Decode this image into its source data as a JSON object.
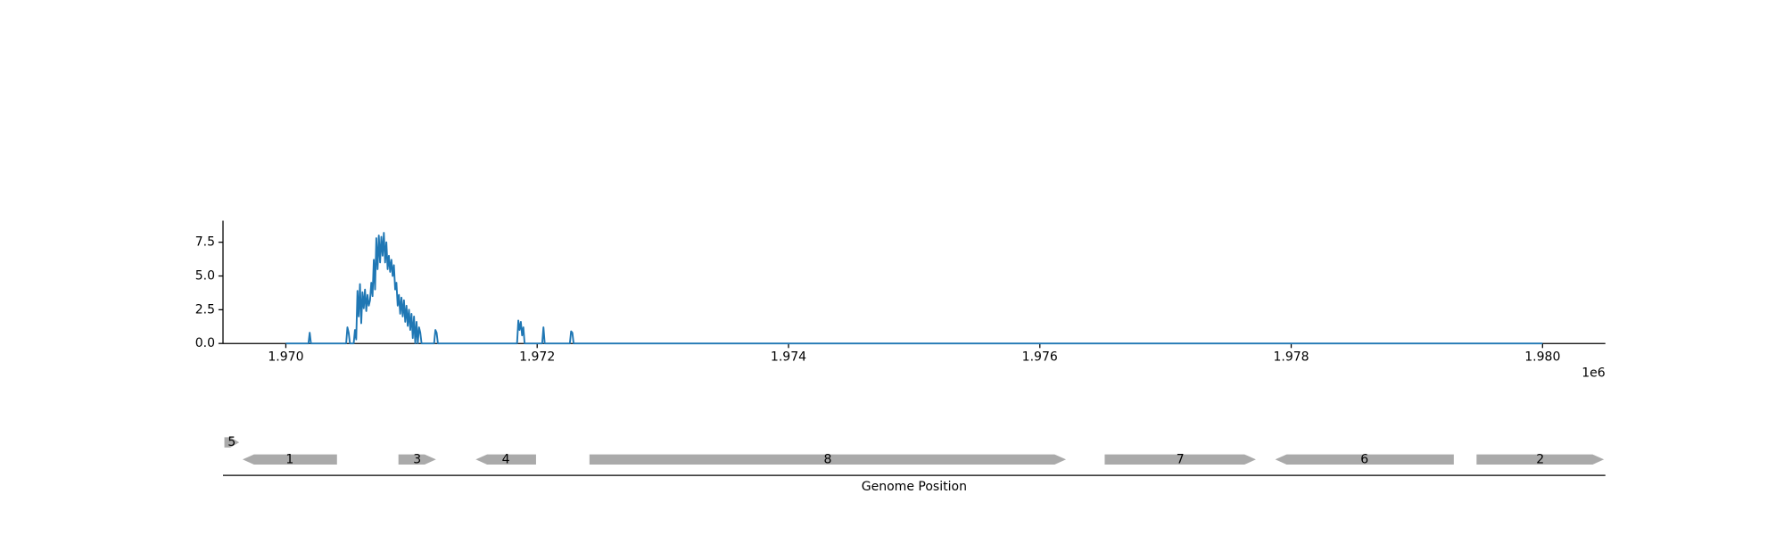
{
  "chart_data": {
    "type": "line",
    "x_label": "Genome Position",
    "x_offset_label": "1e6",
    "xlim": [
      1969500,
      1980500
    ],
    "ylim": [
      0,
      9.1
    ],
    "xticks": [
      {
        "value": 1970000,
        "label": "1.970"
      },
      {
        "value": 1972000,
        "label": "1.972"
      },
      {
        "value": 1974000,
        "label": "1.974"
      },
      {
        "value": 1976000,
        "label": "1.976"
      },
      {
        "value": 1978000,
        "label": "1.978"
      },
      {
        "value": 1980000,
        "label": "1.980"
      }
    ],
    "yticks": [
      {
        "value": 0,
        "label": "0.0"
      },
      2.5,
      {
        "value": 5,
        "label": "5.0"
      },
      7.5
    ],
    "series": [
      {
        "color": "#1f77b4",
        "x": [
          1970000,
          1970180,
          1970190,
          1970200,
          1970480,
          1970490,
          1970500,
          1970510,
          1970540,
          1970550,
          1970560,
          1970570,
          1970580,
          1970590,
          1970600,
          1970610,
          1970620,
          1970630,
          1970640,
          1970650,
          1970660,
          1970670,
          1970680,
          1970690,
          1970700,
          1970710,
          1970720,
          1970730,
          1970740,
          1970750,
          1970760,
          1970770,
          1970780,
          1970790,
          1970800,
          1970810,
          1970820,
          1970830,
          1970840,
          1970850,
          1970860,
          1970870,
          1970880,
          1970890,
          1970900,
          1970910,
          1970920,
          1970930,
          1970940,
          1970950,
          1970960,
          1970970,
          1970980,
          1970990,
          1971000,
          1971010,
          1971020,
          1971030,
          1971040,
          1971050,
          1971060,
          1971070,
          1971080,
          1971180,
          1971190,
          1971200,
          1971210,
          1971840,
          1971850,
          1971860,
          1971870,
          1971880,
          1971890,
          1971900,
          1972040,
          1972050,
          1972060,
          1972260,
          1972270,
          1972280,
          1972290,
          1980000
        ],
        "values": [
          0,
          0,
          0.8,
          0,
          0,
          1.2,
          0.8,
          0,
          0,
          1.0,
          0.3,
          3.9,
          2.0,
          4.4,
          1.5,
          3.8,
          2.6,
          4.0,
          2.4,
          3.6,
          2.8,
          3.2,
          4.5,
          3.5,
          6.2,
          4.0,
          7.8,
          5.5,
          8.0,
          6.0,
          7.9,
          6.5,
          8.2,
          6.0,
          7.5,
          5.5,
          6.5,
          5.3,
          6.2,
          5.0,
          5.8,
          4.0,
          4.5,
          2.8,
          3.6,
          2.2,
          3.4,
          2.0,
          3.2,
          1.6,
          2.8,
          1.3,
          2.5,
          1.0,
          2.2,
          0.4,
          2.0,
          0,
          1.6,
          0,
          1.2,
          0.8,
          0,
          0,
          1.0,
          0.8,
          0,
          0,
          1.7,
          1.0,
          1.6,
          0.6,
          1.2,
          0,
          0,
          1.2,
          0,
          0,
          0.9,
          0.8,
          0,
          0
        ]
      }
    ],
    "genes": {
      "color": "#aaaaaa",
      "items": [
        {
          "label": "1",
          "start": 1969656,
          "end": 1970407,
          "strand": -1
        },
        {
          "label": "2",
          "start": 1979475,
          "end": 1980489,
          "strand": 1
        },
        {
          "label": "3",
          "start": 1970896,
          "end": 1971195,
          "strand": 1
        },
        {
          "label": "4",
          "start": 1971511,
          "end": 1971991,
          "strand": -1
        },
        {
          "label": "5",
          "start": 1969511,
          "end": 1969629,
          "strand": 1
        },
        {
          "label": "6",
          "start": 1977873,
          "end": 1979294,
          "strand": -1
        },
        {
          "label": "7",
          "start": 1976516,
          "end": 1977719,
          "strand": 1
        },
        {
          "label": "8",
          "start": 1972416,
          "end": 1976208,
          "strand": 1
        }
      ]
    }
  }
}
